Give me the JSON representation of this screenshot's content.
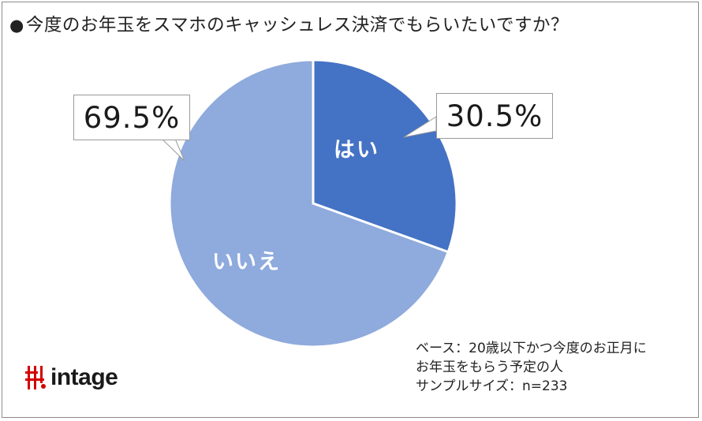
{
  "title": "今度のお年玉をスマホのキャッシュレス決済でもらいたいですか？",
  "title_bullet": "●",
  "chart_data": {
    "type": "pie",
    "categories": [
      "はい",
      "いいえ"
    ],
    "values": [
      30.5,
      69.5
    ],
    "value_labels": [
      "30.5%",
      "69.5%"
    ],
    "colors": [
      "#4472c4",
      "#8faadc"
    ],
    "start_angle": "12 o'clock, clockwise"
  },
  "note_lines": [
    "ベース：20歳以下かつ今度のお正月に",
    "お年玉をもらう予定の人",
    "サンプルサイズ：n=233"
  ],
  "logo": {
    "text": "intage",
    "mark": "intage-logo-mark"
  }
}
